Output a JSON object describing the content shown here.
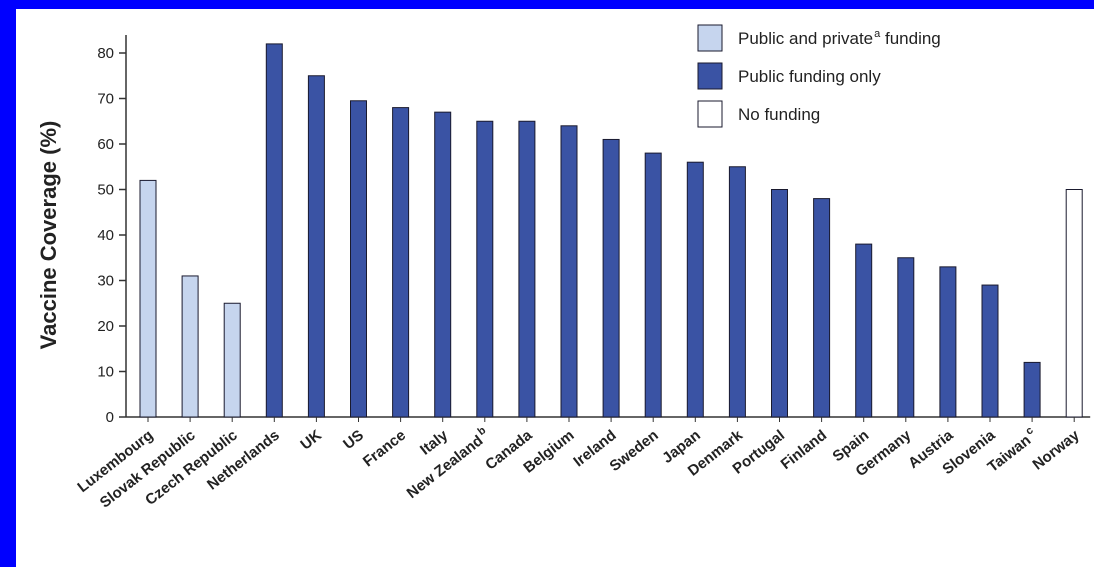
{
  "chart_data": {
    "type": "bar",
    "ylabel": "Vaccine Coverage (%)",
    "xlabel": "",
    "ylim": [
      0,
      85
    ],
    "yticks": [
      0,
      10,
      20,
      30,
      40,
      50,
      60,
      70,
      80
    ],
    "grid": false,
    "legend_position": "top-right",
    "categories": [
      {
        "label": "Luxembourg",
        "sup": "",
        "value": 52,
        "group": "public_private"
      },
      {
        "label": "Slovak Republic",
        "sup": "",
        "value": 31,
        "group": "public_private"
      },
      {
        "label": "Czech Republic",
        "sup": "",
        "value": 25,
        "group": "public_private"
      },
      {
        "label": "Netherlands",
        "sup": "",
        "value": 82,
        "group": "public_only"
      },
      {
        "label": "UK",
        "sup": "",
        "value": 75,
        "group": "public_only"
      },
      {
        "label": "US",
        "sup": "",
        "value": 69.5,
        "group": "public_only"
      },
      {
        "label": "France",
        "sup": "",
        "value": 68,
        "group": "public_only"
      },
      {
        "label": "Italy",
        "sup": "",
        "value": 67,
        "group": "public_only"
      },
      {
        "label": "New Zealand",
        "sup": "b",
        "value": 65,
        "group": "public_only"
      },
      {
        "label": "Canada",
        "sup": "",
        "value": 65,
        "group": "public_only"
      },
      {
        "label": "Belgium",
        "sup": "",
        "value": 64,
        "group": "public_only"
      },
      {
        "label": "Ireland",
        "sup": "",
        "value": 61,
        "group": "public_only"
      },
      {
        "label": "Sweden",
        "sup": "",
        "value": 58,
        "group": "public_only"
      },
      {
        "label": "Japan",
        "sup": "",
        "value": 56,
        "group": "public_only"
      },
      {
        "label": "Denmark",
        "sup": "",
        "value": 55,
        "group": "public_only"
      },
      {
        "label": "Portugal",
        "sup": "",
        "value": 50,
        "group": "public_only"
      },
      {
        "label": "Finland",
        "sup": "",
        "value": 48,
        "group": "public_only"
      },
      {
        "label": "Spain",
        "sup": "",
        "value": 38,
        "group": "public_only"
      },
      {
        "label": "Germany",
        "sup": "",
        "value": 35,
        "group": "public_only"
      },
      {
        "label": "Austria",
        "sup": "",
        "value": 33,
        "group": "public_only"
      },
      {
        "label": "Slovenia",
        "sup": "",
        "value": 29,
        "group": "public_only"
      },
      {
        "label": "Taiwan",
        "sup": "c",
        "value": 12,
        "group": "public_only"
      },
      {
        "label": "Norway",
        "sup": "",
        "value": 50,
        "group": "no_funding"
      }
    ],
    "legend": [
      {
        "key": "public_private",
        "label": "Public and private",
        "sup": "a",
        "suffix": " funding",
        "color": "#C6D5EE"
      },
      {
        "key": "public_only",
        "label": "Public funding only",
        "sup": "",
        "suffix": "",
        "color": "#3A53A4"
      },
      {
        "key": "no_funding",
        "label": "No funding",
        "sup": "",
        "suffix": "",
        "color": "#FFFFFF"
      }
    ]
  },
  "colors": {
    "page_border": "#0000FF",
    "background": "#FFFFFF",
    "bar_stroke": "#1A1A2E",
    "axis": "#333333"
  }
}
